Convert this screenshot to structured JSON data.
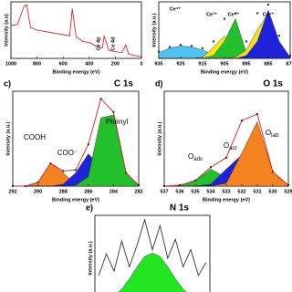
{
  "chart_data": [
    {
      "type": "line",
      "xlabel": "Binding energy (eV)",
      "ylabel": "Intensity (a.u)",
      "xlim": [
        1000,
        0
      ],
      "ylim": [
        0,
        100
      ],
      "xticks": [
        1000,
        800,
        600,
        400,
        200,
        0
      ],
      "x": [
        1000,
        950,
        900,
        880,
        850,
        800,
        750,
        700,
        650,
        600,
        550,
        530,
        500,
        450,
        400,
        350,
        300,
        285,
        250,
        200,
        150,
        120,
        100,
        50,
        0
      ],
      "series": [
        {
          "color": "#d62728",
          "style": "line",
          "values": [
            58,
            60,
            92,
            95,
            55,
            50,
            48,
            46,
            44,
            42,
            40,
            88,
            38,
            30,
            28,
            22,
            18,
            40,
            14,
            12,
            10,
            24,
            8,
            5,
            3
          ]
        }
      ],
      "annotations": [
        "Ce 4p",
        "Ce 4d"
      ]
    },
    {
      "type": "area",
      "xlabel": "Binding energy (eV)",
      "ylabel": "Intensity (a.u.)",
      "xlim": [
        935,
        875
      ],
      "ylim": [
        0,
        100
      ],
      "xticks": [
        935,
        925,
        915,
        905,
        895,
        885,
        875
      ],
      "x": [
        935,
        930,
        925,
        920,
        915,
        910,
        905,
        900,
        895,
        890,
        885,
        880,
        875
      ],
      "series": [
        {
          "color": "#4fc3f7",
          "style": "area",
          "values": [
            10,
            18,
            22,
            20,
            15,
            6,
            0,
            0,
            0,
            0,
            0,
            0,
            0
          ]
        },
        {
          "color": "#f7e11b",
          "style": "area",
          "values": [
            0,
            0,
            0,
            0,
            2,
            20,
            40,
            8,
            0,
            0,
            0,
            0,
            0
          ]
        },
        {
          "color": "#22c02a",
          "style": "area",
          "values": [
            0,
            0,
            0,
            0,
            0,
            5,
            30,
            70,
            10,
            0,
            0,
            0,
            0
          ]
        },
        {
          "color": "#f7e11b",
          "style": "area",
          "values": [
            0,
            0,
            0,
            0,
            0,
            0,
            0,
            2,
            15,
            50,
            80,
            10,
            0
          ]
        },
        {
          "color": "#1e22d8",
          "style": "area",
          "values": [
            0,
            0,
            0,
            0,
            0,
            0,
            0,
            0,
            5,
            30,
            85,
            30,
            2
          ]
        },
        {
          "color": "#333333",
          "style": "points",
          "values": [
            12,
            20,
            24,
            22,
            18,
            30,
            70,
            80,
            30,
            80,
            95,
            40,
            5
          ]
        }
      ],
      "annotations": [
        "Ce⁴⁺",
        "Ce³⁺",
        "Ce⁴⁺",
        "Ce⁴⁺"
      ]
    },
    {
      "type": "area",
      "label": "c)",
      "title": "C 1s",
      "xlabel": "Binding energy (eV)",
      "ylabel": "Intensity (a.u.)",
      "xlim": [
        292,
        282
      ],
      "ylim": [
        0,
        100
      ],
      "xticks": [
        292,
        290,
        288,
        286,
        284,
        282
      ],
      "x": [
        292,
        291,
        290,
        289,
        288,
        287,
        286,
        285,
        284,
        283,
        282
      ],
      "series": [
        {
          "color": "#f58220",
          "style": "area",
          "values": [
            0,
            0,
            4,
            24,
            14,
            2,
            0,
            0,
            0,
            0,
            0
          ]
        },
        {
          "color": "#1e22d8",
          "style": "area",
          "values": [
            0,
            0,
            0,
            0,
            2,
            14,
            34,
            20,
            3,
            0,
            0
          ]
        },
        {
          "color": "#22c02a",
          "style": "area",
          "values": [
            0,
            0,
            0,
            0,
            0,
            1,
            10,
            72,
            75,
            14,
            1
          ]
        },
        {
          "color": "#e02020",
          "style": "line",
          "values": [
            0,
            0,
            4,
            24,
            16,
            17,
            44,
            92,
            78,
            14,
            1
          ]
        },
        {
          "color": "#333333",
          "style": "points",
          "values": [
            0,
            0,
            4,
            24,
            16,
            17,
            44,
            92,
            78,
            14,
            1
          ]
        }
      ],
      "annotations": [
        "COOH",
        "COO⁻",
        "Phenyl"
      ]
    },
    {
      "type": "area",
      "label": "d)",
      "title": "O 1s",
      "xlabel": "Binding energy (eV)",
      "ylabel": "Intensity (a.u.)",
      "xlim": [
        537,
        529
      ],
      "ylim": [
        0,
        100
      ],
      "xticks": [
        537,
        536,
        535,
        534,
        533,
        532,
        531,
        530,
        529
      ],
      "x": [
        537,
        536,
        535,
        534,
        533,
        532,
        531,
        530,
        529
      ],
      "series": [
        {
          "color": "#22c02a",
          "style": "area",
          "values": [
            0,
            1,
            6,
            18,
            9,
            1,
            0,
            0,
            0
          ]
        },
        {
          "color": "#1e22d8",
          "style": "area",
          "values": [
            0,
            0,
            0,
            2,
            18,
            33,
            8,
            0,
            0
          ]
        },
        {
          "color": "#f58220",
          "style": "area",
          "values": [
            0,
            0,
            0,
            0,
            3,
            35,
            68,
            15,
            1
          ]
        },
        {
          "color": "#e02020",
          "style": "line",
          "values": [
            0,
            1,
            6,
            20,
            30,
            69,
            76,
            15,
            1
          ]
        },
        {
          "color": "#333333",
          "style": "points",
          "values": [
            0,
            1,
            6,
            20,
            30,
            69,
            76,
            15,
            1
          ]
        }
      ],
      "annotations": [
        {
          "text": "O",
          "sub": "ads"
        },
        {
          "text": "O",
          "sub": "act"
        },
        {
          "text": "O",
          "sub": "latt"
        }
      ]
    },
    {
      "type": "area",
      "label": "e)",
      "title": "N 1s",
      "ylabel": "Intensity (a.u.)",
      "ylim": [
        0,
        100
      ],
      "categories": [
        null,
        null,
        null,
        null,
        null,
        null,
        null,
        null,
        null,
        null,
        null,
        null,
        null,
        null,
        null
      ],
      "series": [
        {
          "color": "#22e622",
          "style": "area",
          "values": [
            0,
            2,
            6,
            14,
            26,
            40,
            52,
            56,
            52,
            40,
            26,
            14,
            6,
            2,
            0
          ]
        },
        {
          "color": "#333333",
          "style": "line",
          "values": [
            30,
            55,
            35,
            70,
            40,
            65,
            95,
            60,
            88,
            50,
            72,
            40,
            60,
            30,
            45
          ]
        }
      ],
      "annotations": []
    }
  ]
}
